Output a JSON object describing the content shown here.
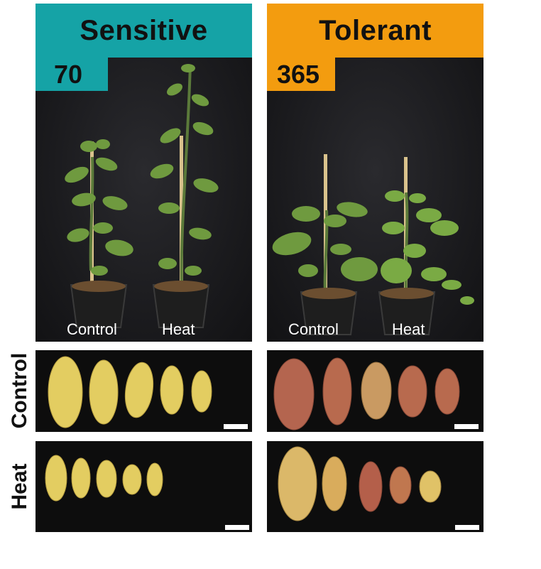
{
  "columns": [
    {
      "name": "Sensitive",
      "count": "70",
      "color": "#15a3a6"
    },
    {
      "name": "Tolerant",
      "count": "365",
      "color": "#f39c0f"
    }
  ],
  "plant_labels": {
    "control": "Control",
    "heat": "Heat"
  },
  "row_labels": {
    "control": "Control",
    "heat": "Heat"
  },
  "tuber_colors": {
    "yellow": "#e6cf63",
    "red": "#b5624a"
  }
}
